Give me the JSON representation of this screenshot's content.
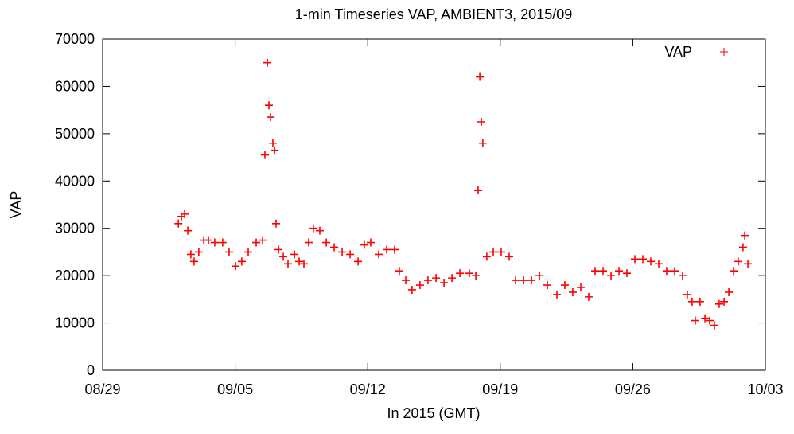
{
  "chart_data": {
    "type": "scatter",
    "title": "1-min Timeseries VAP, AMBIENT3, 2015/09",
    "x_label": "In 2015 (GMT)",
    "y_label": "VAP",
    "legend": "top right",
    "xlim": [
      0,
      35
    ],
    "xticks": [
      {
        "value": 0,
        "label": "08/29"
      },
      {
        "value": 7,
        "label": "09/05"
      },
      {
        "value": 14,
        "label": "09/12"
      },
      {
        "value": 21,
        "label": "09/19"
      },
      {
        "value": 28,
        "label": "09/26"
      },
      {
        "value": 35,
        "label": "10/03"
      }
    ],
    "ylim": [
      0,
      70000
    ],
    "yticks": [
      0,
      10000,
      20000,
      30000,
      40000,
      50000,
      60000,
      70000
    ],
    "series": [
      {
        "name": "VAP",
        "color": "#ff0000",
        "x": [
          4.0,
          4.16,
          4.33,
          4.5,
          4.66,
          4.83,
          5.08,
          5.34,
          5.59,
          5.92,
          6.34,
          6.68,
          7.02,
          7.35,
          7.69,
          8.11,
          8.45,
          8.57,
          8.7,
          8.78,
          8.87,
          8.99,
          9.08,
          9.16,
          9.29,
          9.54,
          9.79,
          10.13,
          10.38,
          10.63,
          10.88,
          11.13,
          11.47,
          11.81,
          12.23,
          12.65,
          13.07,
          13.49,
          13.82,
          14.16,
          14.58,
          15.0,
          15.42,
          15.67,
          16.01,
          16.34,
          16.76,
          17.18,
          17.61,
          18.03,
          18.45,
          18.87,
          19.37,
          19.71,
          19.83,
          19.92,
          20.0,
          20.08,
          20.29,
          20.63,
          21.05,
          21.47,
          21.81,
          22.23,
          22.65,
          23.07,
          23.49,
          23.99,
          24.41,
          24.83,
          25.25,
          25.67,
          26.01,
          26.43,
          26.85,
          27.27,
          27.69,
          28.11,
          28.53,
          28.95,
          29.37,
          29.79,
          30.21,
          30.63,
          30.88,
          31.13,
          31.3,
          31.55,
          31.81,
          32.06,
          32.31,
          32.56,
          32.82,
          33.07,
          33.32,
          33.57,
          33.82,
          33.91,
          34.08
        ],
        "values": [
          31000,
          32500,
          33000,
          29500,
          24500,
          23000,
          25000,
          27500,
          27500,
          27000,
          27000,
          25000,
          22000,
          23000,
          25000,
          27000,
          27500,
          45500,
          65000,
          56000,
          53500,
          48000,
          46500,
          31000,
          25500,
          24000,
          22500,
          24500,
          23000,
          22500,
          27000,
          30000,
          29500,
          27000,
          26000,
          25000,
          24500,
          23000,
          26500,
          27000,
          24500,
          25500,
          25500,
          21000,
          19000,
          17000,
          18000,
          19000,
          19500,
          18500,
          19500,
          20500,
          20500,
          20000,
          38000,
          62000,
          52500,
          48000,
          24000,
          25000,
          25000,
          24000,
          19000,
          19000,
          19000,
          20000,
          18000,
          16000,
          18000,
          16500,
          17500,
          15500,
          21000,
          21000,
          20000,
          21000,
          20500,
          23500,
          23500,
          23000,
          22500,
          21000,
          21000,
          20000,
          16000,
          14500,
          10500,
          14500,
          11000,
          10500,
          9500,
          14000,
          14500,
          16500,
          21000,
          23000,
          26000,
          28500,
          22500
        ]
      }
    ]
  }
}
